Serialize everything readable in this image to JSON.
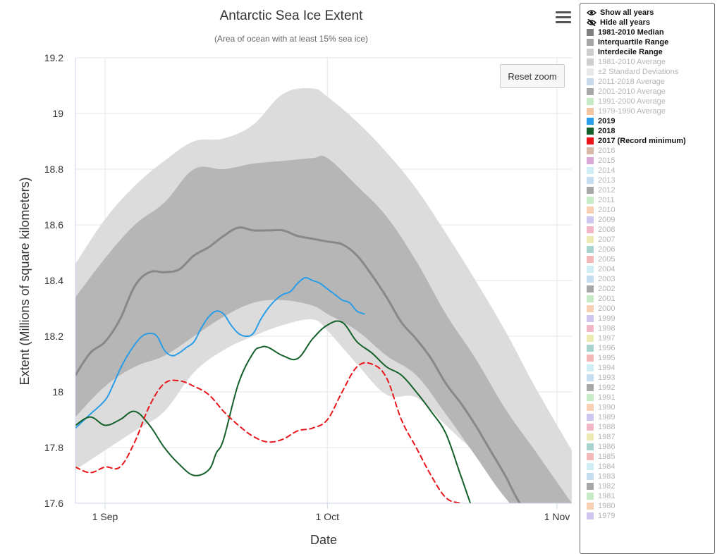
{
  "chart_data": {
    "type": "area",
    "title": "Antarctic Sea Ice Extent",
    "subtitle": "(Area of ocean with at least 15% sea ice)",
    "xlabel": "Date",
    "ylabel": "Extent (Millions of square kilometers)",
    "x_ticks": [
      {
        "date": "Sep 1",
        "label": "1 Sep"
      },
      {
        "date": "Oct 1",
        "label": "1 Oct"
      },
      {
        "date": "Nov 1",
        "label": "1 Nov"
      }
    ],
    "y_ticks": [
      "17.6",
      "17.8",
      "18",
      "18.2",
      "18.4",
      "18.6",
      "18.8",
      "19",
      "19.2"
    ],
    "xlim": [
      "Aug 28",
      "Nov 3"
    ],
    "ylim": [
      17.6,
      19.2
    ],
    "grid": true,
    "legend_position": "right",
    "series": [
      {
        "name": "Interdecile Range",
        "kind": "band",
        "color": "#dcdcdc",
        "x": [
          "Aug 28",
          "Sep 1",
          "Sep 5",
          "Sep 9",
          "Sep 13",
          "Sep 17",
          "Sep 21",
          "Sep 25",
          "Sep 29",
          "Oct 1",
          "Oct 5",
          "Oct 9",
          "Oct 13",
          "Oct 17",
          "Oct 21",
          "Oct 25",
          "Oct 29",
          "Nov 3"
        ],
        "low": [
          17.72,
          17.79,
          17.86,
          17.93,
          18.07,
          18.15,
          18.2,
          18.24,
          18.26,
          18.22,
          18.1,
          17.99,
          17.98,
          17.88,
          17.78,
          17.67,
          17.58,
          17.58
        ],
        "high": [
          18.46,
          18.62,
          18.74,
          18.83,
          18.9,
          18.91,
          18.96,
          19.07,
          19.09,
          19.06,
          18.97,
          18.86,
          18.73,
          18.57,
          18.4,
          18.22,
          18.02,
          17.79
        ]
      },
      {
        "name": "Interquartile Range",
        "kind": "band",
        "color": "#b6b6b6",
        "x": [
          "Aug 28",
          "Sep 1",
          "Sep 5",
          "Sep 9",
          "Sep 13",
          "Sep 17",
          "Sep 21",
          "Sep 25",
          "Sep 29",
          "Oct 1",
          "Oct 5",
          "Oct 9",
          "Oct 13",
          "Oct 17",
          "Oct 21",
          "Oct 25",
          "Oct 29",
          "Nov 3"
        ],
        "low": [
          17.91,
          18.02,
          18.09,
          18.13,
          18.2,
          18.27,
          18.32,
          18.33,
          18.31,
          18.28,
          18.22,
          18.13,
          18.06,
          17.92,
          17.77,
          17.62,
          17.52,
          17.52
        ],
        "high": [
          18.34,
          18.48,
          18.6,
          18.68,
          18.8,
          18.8,
          18.82,
          18.83,
          18.84,
          18.84,
          18.74,
          18.63,
          18.47,
          18.28,
          18.12,
          17.94,
          17.79,
          17.6
        ]
      },
      {
        "name": "1981-2010 Median",
        "kind": "line",
        "color": "#888888",
        "dash": false,
        "x": [
          "Aug 28",
          "Aug 30",
          "Sep 1",
          "Sep 3",
          "Sep 5",
          "Sep 7",
          "Sep 9",
          "Sep 11",
          "Sep 13",
          "Sep 15",
          "Sep 17",
          "Sep 19",
          "Sep 21",
          "Sep 23",
          "Sep 25",
          "Sep 27",
          "Sep 29",
          "Oct 1",
          "Oct 3",
          "Oct 5",
          "Oct 7",
          "Oct 9",
          "Oct 11",
          "Oct 13",
          "Oct 15",
          "Oct 17",
          "Oct 19",
          "Oct 21",
          "Oct 23",
          "Oct 25",
          "Oct 27",
          "Oct 29"
        ],
        "y": [
          18.06,
          18.14,
          18.18,
          18.26,
          18.38,
          18.43,
          18.43,
          18.44,
          18.49,
          18.52,
          18.56,
          18.59,
          18.58,
          18.58,
          18.58,
          18.56,
          18.55,
          18.54,
          18.53,
          18.49,
          18.42,
          18.34,
          18.25,
          18.19,
          18.12,
          18.03,
          17.96,
          17.88,
          17.79,
          17.7,
          17.6,
          17.55
        ]
      },
      {
        "name": "2019",
        "kind": "line",
        "color": "#2a9de8",
        "dash": false,
        "x": [
          "Aug 28",
          "Aug 30",
          "Sep 1",
          "Sep 2",
          "Sep 3",
          "Sep 4",
          "Sep 5",
          "Sep 6",
          "Sep 7",
          "Sep 8",
          "Sep 9",
          "Sep 10",
          "Sep 11",
          "Sep 12",
          "Sep 13",
          "Sep 14",
          "Sep 15",
          "Sep 16",
          "Sep 17",
          "Sep 18",
          "Sep 19",
          "Sep 20",
          "Sep 21",
          "Sep 22",
          "Sep 23",
          "Sep 24",
          "Sep 25",
          "Sep 26",
          "Sep 27",
          "Sep 28",
          "Sep 29",
          "Sep 30",
          "Oct 1",
          "Oct 2",
          "Oct 3",
          "Oct 4",
          "Oct 5",
          "Oct 6"
        ],
        "y": [
          17.87,
          17.92,
          17.97,
          18.02,
          18.08,
          18.13,
          18.17,
          18.2,
          18.21,
          18.2,
          18.15,
          18.13,
          18.14,
          18.16,
          18.18,
          18.23,
          18.27,
          18.29,
          18.28,
          18.24,
          18.21,
          18.2,
          18.21,
          18.26,
          18.3,
          18.33,
          18.35,
          18.36,
          18.39,
          18.41,
          18.4,
          18.39,
          18.37,
          18.35,
          18.33,
          18.32,
          18.29,
          18.28
        ]
      },
      {
        "name": "2018",
        "kind": "line",
        "color": "#14602a",
        "dash": false,
        "x": [
          "Aug 28",
          "Aug 30",
          "Sep 1",
          "Sep 3",
          "Sep 5",
          "Sep 7",
          "Sep 9",
          "Sep 11",
          "Sep 13",
          "Sep 15",
          "Sep 16",
          "Sep 17",
          "Sep 19",
          "Sep 21",
          "Sep 22",
          "Sep 23",
          "Sep 25",
          "Sep 27",
          "Sep 29",
          "Oct 1",
          "Oct 3",
          "Oct 5",
          "Oct 7",
          "Oct 9",
          "Oct 11",
          "Oct 13",
          "Oct 15",
          "Oct 17",
          "Oct 19",
          "Oct 21",
          "Oct 22"
        ],
        "y": [
          17.88,
          17.91,
          17.88,
          17.9,
          17.93,
          17.88,
          17.8,
          17.74,
          17.7,
          17.72,
          17.78,
          17.83,
          18.03,
          18.14,
          18.16,
          18.16,
          18.13,
          18.12,
          18.19,
          18.24,
          18.25,
          18.18,
          18.14,
          18.09,
          18.06,
          18.0,
          17.93,
          17.85,
          17.7,
          17.55,
          17.5
        ]
      },
      {
        "name": "2017 (Record minimum)",
        "kind": "line",
        "color": "#e8161b",
        "dash": true,
        "x": [
          "Aug 28",
          "Aug 30",
          "Sep 1",
          "Sep 3",
          "Sep 5",
          "Sep 7",
          "Sep 9",
          "Sep 11",
          "Sep 13",
          "Sep 15",
          "Sep 17",
          "Sep 19",
          "Sep 21",
          "Sep 23",
          "Sep 25",
          "Sep 27",
          "Sep 29",
          "Oct 1",
          "Oct 3",
          "Oct 5",
          "Oct 7",
          "Oct 9",
          "Oct 11",
          "Oct 13",
          "Oct 15",
          "Oct 17",
          "Oct 19",
          "Oct 21",
          "Oct 23"
        ],
        "y": [
          17.73,
          17.71,
          17.73,
          17.73,
          17.82,
          17.95,
          18.03,
          18.04,
          18.02,
          17.99,
          17.93,
          17.88,
          17.84,
          17.82,
          17.83,
          17.86,
          17.87,
          17.9,
          18.0,
          18.09,
          18.1,
          18.05,
          17.9,
          17.8,
          17.7,
          17.62,
          17.6,
          17.59,
          17.58
        ]
      }
    ]
  },
  "ui": {
    "menu_icon": "hamburger-icon",
    "reset_zoom": "Reset zoom"
  },
  "legend": {
    "show_all": "Show all years",
    "hide_all": "Hide all years",
    "items": [
      {
        "label": "1981-2010 Median",
        "color": "#808080",
        "on": true
      },
      {
        "label": "Interquartile Range",
        "color": "#a6a6a6",
        "on": true
      },
      {
        "label": "Interdecile Range",
        "color": "#cccccc",
        "on": true
      },
      {
        "label": "1981-2010 Average",
        "color": "#cdcdcd",
        "on": false
      },
      {
        "label": "±2 Standard Deviations",
        "color": "#e8e8e8",
        "on": false
      },
      {
        "label": "2011-2018 Average",
        "color": "#c9d9ec",
        "on": false
      },
      {
        "label": "2001-2010 Average",
        "color": "#a8a8a8",
        "on": false
      },
      {
        "label": "1991-2000 Average",
        "color": "#c6ebc6",
        "on": false
      },
      {
        "label": "1979-1990 Average",
        "color": "#f3c6a3",
        "on": false
      },
      {
        "label": "2019",
        "color": "#2a9de8",
        "on": true
      },
      {
        "label": "2018",
        "color": "#14602a",
        "on": true
      },
      {
        "label": "2017 (Record minimum)",
        "color": "#e8161b",
        "on": true
      },
      {
        "label": "2016",
        "color": "#d9b8a8",
        "on": false
      },
      {
        "label": "2015",
        "color": "#d9a8d9",
        "on": false
      },
      {
        "label": "2014",
        "color": "#cdeef3",
        "on": false
      },
      {
        "label": "2013",
        "color": "#c6dcf0",
        "on": false
      },
      {
        "label": "2012",
        "color": "#a8a8a8",
        "on": false
      },
      {
        "label": "2011",
        "color": "#c6ebc6",
        "on": false
      },
      {
        "label": "2010",
        "color": "#f7cfb3",
        "on": false
      },
      {
        "label": "2009",
        "color": "#cfc6ef",
        "on": false
      },
      {
        "label": "2008",
        "color": "#f3b8c6",
        "on": false
      },
      {
        "label": "2007",
        "color": "#ecebb3",
        "on": false
      },
      {
        "label": "2006",
        "color": "#a8d3cf",
        "on": false
      },
      {
        "label": "2005",
        "color": "#f3b8b8",
        "on": false
      },
      {
        "label": "2004",
        "color": "#cdeef3",
        "on": false
      },
      {
        "label": "2003",
        "color": "#c6dcf0",
        "on": false
      },
      {
        "label": "2002",
        "color": "#a8a8a8",
        "on": false
      },
      {
        "label": "2001",
        "color": "#c6ebc6",
        "on": false
      },
      {
        "label": "2000",
        "color": "#f7cfb3",
        "on": false
      },
      {
        "label": "1999",
        "color": "#cfc6ef",
        "on": false
      },
      {
        "label": "1998",
        "color": "#f3b8c6",
        "on": false
      },
      {
        "label": "1997",
        "color": "#ecebb3",
        "on": false
      },
      {
        "label": "1996",
        "color": "#a8d3cf",
        "on": false
      },
      {
        "label": "1995",
        "color": "#f3b8b8",
        "on": false
      },
      {
        "label": "1994",
        "color": "#cdeef3",
        "on": false
      },
      {
        "label": "1993",
        "color": "#c6dcf0",
        "on": false
      },
      {
        "label": "1992",
        "color": "#a8a8a8",
        "on": false
      },
      {
        "label": "1991",
        "color": "#c6ebc6",
        "on": false
      },
      {
        "label": "1990",
        "color": "#f7cfb3",
        "on": false
      },
      {
        "label": "1989",
        "color": "#cfc6ef",
        "on": false
      },
      {
        "label": "1988",
        "color": "#f3b8c6",
        "on": false
      },
      {
        "label": "1987",
        "color": "#ecebb3",
        "on": false
      },
      {
        "label": "1986",
        "color": "#a8d3cf",
        "on": false
      },
      {
        "label": "1985",
        "color": "#f3b8b8",
        "on": false
      },
      {
        "label": "1984",
        "color": "#cdeef3",
        "on": false
      },
      {
        "label": "1983",
        "color": "#c6dcf0",
        "on": false
      },
      {
        "label": "1982",
        "color": "#a8a8a8",
        "on": false
      },
      {
        "label": "1981",
        "color": "#c6ebc6",
        "on": false
      },
      {
        "label": "1980",
        "color": "#f7cfb3",
        "on": false
      },
      {
        "label": "1979",
        "color": "#cfc6ef",
        "on": false
      }
    ]
  }
}
